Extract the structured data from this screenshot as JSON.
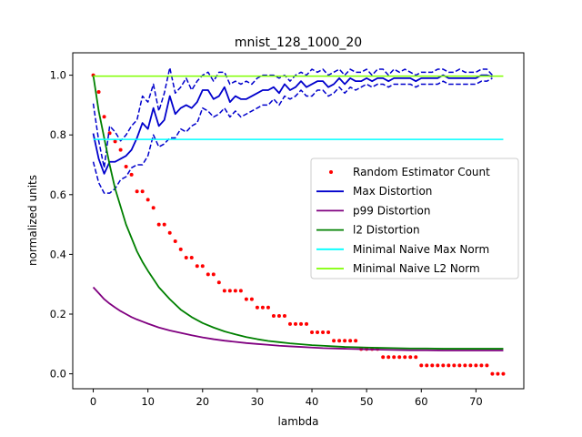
{
  "chart_data": {
    "type": "line",
    "title": "mnist_128_1000_20",
    "xlabel": "lambda",
    "ylabel": "normalized units",
    "xlim": [
      -3.75,
      78.75
    ],
    "ylim": [
      -0.05,
      1.075
    ],
    "xticks": [
      0,
      10,
      20,
      30,
      40,
      50,
      60,
      70
    ],
    "yticks": [
      0.0,
      0.2,
      0.4,
      0.6,
      0.8,
      1.0
    ],
    "xtick_labels": [
      "0",
      "10",
      "20",
      "30",
      "40",
      "50",
      "60",
      "70"
    ],
    "ytick_labels": [
      "0.0",
      "0.2",
      "0.4",
      "0.6",
      "0.8",
      "1.0"
    ],
    "grid": false,
    "legend_position": "center-right",
    "legend": [
      "Random Estimator Count",
      "Max Distortion",
      "p99 Distortion",
      "l2 Distortion",
      "Minimal Naive Max Norm",
      "Minimal Naive L2 Norm"
    ],
    "series": [
      {
        "name": "Random Estimator Count",
        "style": "scatter",
        "color": "#ff0000",
        "x": [
          0,
          1,
          2,
          3,
          4,
          5,
          6,
          7,
          8,
          9,
          10,
          11,
          12,
          13,
          14,
          15,
          16,
          17,
          18,
          19,
          20,
          21,
          22,
          23,
          24,
          25,
          26,
          27,
          28,
          29,
          30,
          31,
          32,
          33,
          34,
          35,
          36,
          37,
          38,
          39,
          40,
          41,
          42,
          43,
          44,
          45,
          46,
          47,
          48,
          49,
          50,
          51,
          52,
          53,
          54,
          55,
          56,
          57,
          58,
          59,
          60,
          61,
          62,
          63,
          64,
          65,
          66,
          67,
          68,
          69,
          70,
          71,
          72,
          73,
          74,
          75
        ],
        "y": [
          1.0,
          0.944,
          0.861,
          0.806,
          0.778,
          0.75,
          0.694,
          0.667,
          0.611,
          0.611,
          0.583,
          0.556,
          0.5,
          0.5,
          0.472,
          0.444,
          0.417,
          0.389,
          0.389,
          0.361,
          0.361,
          0.333,
          0.333,
          0.306,
          0.278,
          0.278,
          0.278,
          0.278,
          0.25,
          0.25,
          0.222,
          0.222,
          0.222,
          0.194,
          0.194,
          0.194,
          0.167,
          0.167,
          0.167,
          0.167,
          0.139,
          0.139,
          0.139,
          0.139,
          0.111,
          0.111,
          0.111,
          0.111,
          0.111,
          0.083,
          0.083,
          0.083,
          0.083,
          0.056,
          0.056,
          0.056,
          0.056,
          0.056,
          0.056,
          0.056,
          0.028,
          0.028,
          0.028,
          0.028,
          0.028,
          0.028,
          0.028,
          0.028,
          0.028,
          0.028,
          0.028,
          0.028,
          0.028,
          0.0,
          0.0,
          0.0
        ]
      },
      {
        "name": "Max Distortion",
        "style": "solid",
        "color": "#0000cc",
        "x": [
          0,
          1,
          2,
          3,
          4,
          5,
          6,
          7,
          8,
          9,
          10,
          11,
          12,
          13,
          14,
          15,
          16,
          17,
          18,
          19,
          20,
          21,
          22,
          23,
          24,
          25,
          26,
          27,
          28,
          29,
          30,
          31,
          32,
          33,
          34,
          35,
          36,
          37,
          38,
          39,
          40,
          41,
          42,
          43,
          44,
          45,
          46,
          47,
          48,
          49,
          50,
          51,
          52,
          53,
          54,
          55,
          56,
          57,
          58,
          59,
          60,
          61,
          62,
          63,
          64,
          65,
          66,
          67,
          68,
          69,
          70,
          71,
          72,
          73
        ],
        "y": [
          0.805,
          0.72,
          0.67,
          0.71,
          0.71,
          0.72,
          0.73,
          0.75,
          0.79,
          0.84,
          0.82,
          0.89,
          0.83,
          0.85,
          0.93,
          0.87,
          0.89,
          0.9,
          0.89,
          0.91,
          0.95,
          0.95,
          0.92,
          0.93,
          0.96,
          0.91,
          0.93,
          0.92,
          0.92,
          0.93,
          0.94,
          0.95,
          0.95,
          0.96,
          0.94,
          0.97,
          0.95,
          0.96,
          0.98,
          0.96,
          0.97,
          0.98,
          0.98,
          0.96,
          0.97,
          0.99,
          0.97,
          0.99,
          0.98,
          0.98,
          0.99,
          0.98,
          0.99,
          0.99,
          0.98,
          0.99,
          0.99,
          0.99,
          0.99,
          0.98,
          0.99,
          0.99,
          0.99,
          0.99,
          1.0,
          0.99,
          0.99,
          0.99,
          0.99,
          0.99,
          0.99,
          1.0,
          1.0,
          0.995
        ]
      },
      {
        "name": "Max Distortion upper",
        "style": "dashed",
        "color": "#0000cc",
        "x": [
          0,
          1,
          2,
          3,
          4,
          5,
          6,
          7,
          8,
          9,
          10,
          11,
          12,
          13,
          14,
          15,
          16,
          17,
          18,
          19,
          20,
          21,
          22,
          23,
          24,
          25,
          26,
          27,
          28,
          29,
          30,
          31,
          32,
          33,
          34,
          35,
          36,
          37,
          38,
          39,
          40,
          41,
          42,
          43,
          44,
          45,
          46,
          47,
          48,
          49,
          50,
          51,
          52,
          53,
          54,
          55,
          56,
          57,
          58,
          59,
          60,
          61,
          62,
          63,
          64,
          65,
          66,
          67,
          68,
          69,
          70,
          71,
          72,
          73
        ],
        "y": [
          0.905,
          0.78,
          0.69,
          0.83,
          0.81,
          0.78,
          0.8,
          0.83,
          0.85,
          0.93,
          0.91,
          0.97,
          0.88,
          0.94,
          1.025,
          0.94,
          0.96,
          0.99,
          0.95,
          0.98,
          1.0,
          1.01,
          0.98,
          1.01,
          1.01,
          0.97,
          0.98,
          0.97,
          0.98,
          0.97,
          0.99,
          1.0,
          1.0,
          1.0,
          0.99,
          1.0,
          0.98,
          1.0,
          1.01,
          1.0,
          1.02,
          1.01,
          1.02,
          1.0,
          1.01,
          1.02,
          1.0,
          1.02,
          1.01,
          1.01,
          1.02,
          1.0,
          1.02,
          1.02,
          1.0,
          1.02,
          1.01,
          1.02,
          1.01,
          1.0,
          1.01,
          1.01,
          1.01,
          1.02,
          1.02,
          1.01,
          1.01,
          1.02,
          1.01,
          1.01,
          1.01,
          1.02,
          1.02,
          1.0
        ]
      },
      {
        "name": "Max Distortion lower",
        "style": "dashed",
        "color": "#0000cc",
        "x": [
          0,
          1,
          2,
          3,
          4,
          5,
          6,
          7,
          8,
          9,
          10,
          11,
          12,
          13,
          14,
          15,
          16,
          17,
          18,
          19,
          20,
          21,
          22,
          23,
          24,
          25,
          26,
          27,
          28,
          29,
          30,
          31,
          32,
          33,
          34,
          35,
          36,
          37,
          38,
          39,
          40,
          41,
          42,
          43,
          44,
          45,
          46,
          47,
          48,
          49,
          50,
          51,
          52,
          53,
          54,
          55,
          56,
          57,
          58,
          59,
          60,
          61,
          62,
          63,
          64,
          65,
          66,
          67,
          68,
          69,
          70,
          71,
          72,
          73
        ],
        "y": [
          0.71,
          0.64,
          0.605,
          0.605,
          0.62,
          0.65,
          0.66,
          0.69,
          0.7,
          0.7,
          0.73,
          0.8,
          0.76,
          0.77,
          0.79,
          0.79,
          0.82,
          0.81,
          0.83,
          0.84,
          0.89,
          0.88,
          0.86,
          0.87,
          0.89,
          0.86,
          0.88,
          0.86,
          0.87,
          0.88,
          0.89,
          0.9,
          0.9,
          0.92,
          0.9,
          0.93,
          0.92,
          0.93,
          0.95,
          0.93,
          0.93,
          0.95,
          0.95,
          0.93,
          0.94,
          0.96,
          0.94,
          0.96,
          0.95,
          0.96,
          0.97,
          0.96,
          0.97,
          0.97,
          0.96,
          0.97,
          0.97,
          0.97,
          0.97,
          0.96,
          0.97,
          0.97,
          0.97,
          0.97,
          0.98,
          0.97,
          0.97,
          0.97,
          0.97,
          0.97,
          0.97,
          0.98,
          0.98,
          0.99
        ]
      },
      {
        "name": "p99 Distortion",
        "style": "solid",
        "color": "#800080",
        "x": [
          0,
          1,
          2,
          3,
          4,
          5,
          6,
          7,
          8,
          9,
          10,
          12,
          14,
          16,
          18,
          20,
          22,
          24,
          26,
          28,
          30,
          32,
          34,
          36,
          38,
          40,
          42,
          44,
          46,
          48,
          50,
          52,
          55,
          58,
          61,
          64,
          67,
          70,
          73,
          75
        ],
        "y": [
          0.29,
          0.27,
          0.25,
          0.235,
          0.222,
          0.21,
          0.2,
          0.19,
          0.182,
          0.175,
          0.168,
          0.155,
          0.145,
          0.137,
          0.129,
          0.122,
          0.116,
          0.111,
          0.107,
          0.103,
          0.1,
          0.097,
          0.094,
          0.092,
          0.09,
          0.088,
          0.086,
          0.085,
          0.084,
          0.083,
          0.082,
          0.081,
          0.08,
          0.079,
          0.079,
          0.078,
          0.078,
          0.078,
          0.078,
          0.078
        ]
      },
      {
        "name": "l2 Distortion",
        "style": "solid",
        "color": "#008000",
        "x": [
          0,
          1,
          2,
          3,
          4,
          5,
          6,
          7,
          8,
          9,
          10,
          12,
          14,
          16,
          18,
          20,
          22,
          24,
          26,
          28,
          30,
          32,
          34,
          36,
          38,
          40,
          42,
          44,
          46,
          48,
          50,
          52,
          55,
          58,
          61,
          64,
          67,
          70,
          73,
          75
        ],
        "y": [
          1.0,
          0.88,
          0.79,
          0.7,
          0.62,
          0.56,
          0.5,
          0.455,
          0.41,
          0.375,
          0.345,
          0.29,
          0.25,
          0.215,
          0.19,
          0.17,
          0.155,
          0.142,
          0.132,
          0.123,
          0.116,
          0.11,
          0.106,
          0.102,
          0.099,
          0.096,
          0.094,
          0.092,
          0.09,
          0.089,
          0.088,
          0.087,
          0.086,
          0.085,
          0.085,
          0.084,
          0.084,
          0.084,
          0.084,
          0.084
        ]
      },
      {
        "name": "Minimal Naive Max Norm",
        "style": "solid",
        "color": "#00ffff",
        "x": [
          0,
          75
        ],
        "y": [
          0.785,
          0.785
        ]
      },
      {
        "name": "Minimal Naive L2 Norm",
        "style": "solid",
        "color": "#7fff00",
        "x": [
          0,
          75
        ],
        "y": [
          0.997,
          0.997
        ]
      }
    ]
  }
}
